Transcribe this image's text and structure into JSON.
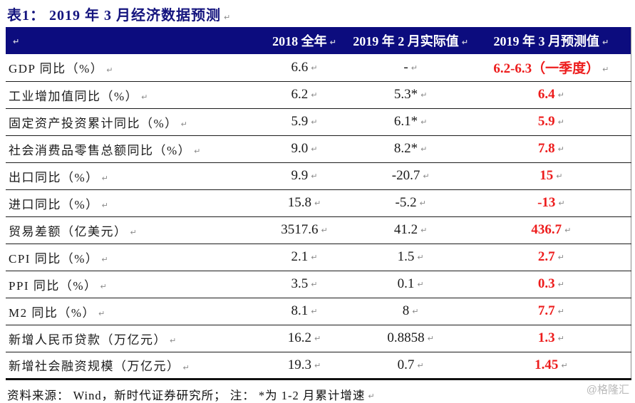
{
  "title": "表1：  2019 年 3 月经济数据预测",
  "marks": {
    "pilcrow": "↵"
  },
  "colors": {
    "header_background": "#0c0c7e",
    "title_navy": "#14147e",
    "forecast_red": "#ed1c1c",
    "row_divider": "#1c1c1c",
    "watermark_gray": "#b9b9b9"
  },
  "table": {
    "headers": [
      "2018 全年",
      "2019 年 2 月实际值",
      "2019 年 3 月预测值"
    ],
    "rows": [
      {
        "label": "GDP 同比（%）",
        "c1": "6.6",
        "c2": "-",
        "c3": "6.2-6.3（一季度）"
      },
      {
        "label": "工业增加值同比（%）",
        "c1": "6.2",
        "c2": "5.3*",
        "c3": "6.4"
      },
      {
        "label": "固定资产投资累计同比（%）",
        "c1": "5.9",
        "c2": "6.1*",
        "c3": "5.9"
      },
      {
        "label": "社会消费品零售总额同比（%）",
        "c1": "9.0",
        "c2": "8.2*",
        "c3": "7.8"
      },
      {
        "label": "出口同比（%）",
        "c1": "9.9",
        "c2": "-20.7",
        "c3": "15"
      },
      {
        "label": "进口同比（%）",
        "c1": "15.8",
        "c2": "-5.2",
        "c3": "-13"
      },
      {
        "label": "贸易差额（亿美元）",
        "c1": "3517.6",
        "c2": "41.2",
        "c3": "436.7"
      },
      {
        "label": "CPI 同比（%）",
        "c1": "2.1",
        "c2": "1.5",
        "c3": "2.7"
      },
      {
        "label": "PPI 同比（%）",
        "c1": "3.5",
        "c2": "0.1",
        "c3": "0.3"
      },
      {
        "label": "M2 同比（%）",
        "c1": "8.1",
        "c2": "8",
        "c3": "7.7"
      },
      {
        "label": "新增人民币贷款（万亿元）",
        "c1": "16.2",
        "c2": "0.8858",
        "c3": "1.3"
      },
      {
        "label": "新增社会融资规模（万亿元）",
        "c1": "19.3",
        "c2": "0.7",
        "c3": "1.45"
      }
    ]
  },
  "footer": {
    "source": "资料来源： Wind，新时代证券研究所； 注： *为 1-2 月累计增速",
    "watermark": "@格隆汇"
  }
}
